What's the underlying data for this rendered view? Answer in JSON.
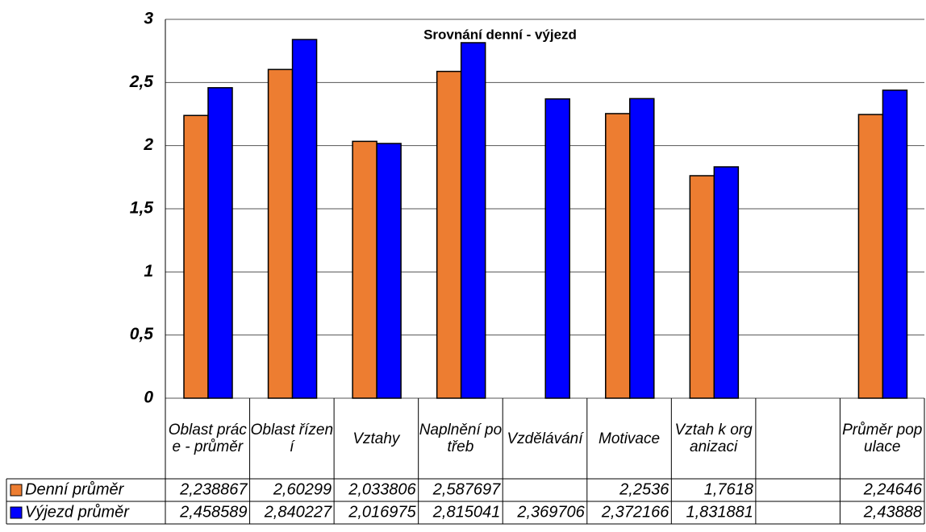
{
  "chart_data": {
    "type": "bar",
    "title": "Srovnání denní - výjezd",
    "categories": [
      "Oblast práce - průměr",
      "Oblast řízení",
      "Vztahy",
      "Naplnění potřeb",
      "Vzdělávání",
      "Motivace",
      "Vztah k organizaci",
      null,
      "Průměr populace"
    ],
    "series": [
      {
        "name": "Denní průměr",
        "color": "#ed7d31",
        "values": [
          2.238867,
          2.60299,
          2.033806,
          2.587697,
          null,
          2.2536,
          1.7618,
          null,
          2.24646
        ],
        "value_labels": [
          "2,238867",
          "2,60299",
          "2,033806",
          "2,587697",
          null,
          "2,2536",
          "1,7618",
          null,
          "2,24646"
        ]
      },
      {
        "name": "Výjezd průměr",
        "color": "#0000ff",
        "values": [
          2.458589,
          2.840227,
          2.016975,
          2.815041,
          2.369706,
          2.372166,
          1.831881,
          null,
          2.43888
        ],
        "value_labels": [
          "2,458589",
          "2,840227",
          "2,016975",
          "2,815041",
          "2,369706",
          "2,372166",
          "1,831881",
          null,
          "2,43888"
        ]
      }
    ],
    "ylim": [
      0,
      3
    ],
    "yticks": [
      0,
      {
        "value": 0.5,
        "label": "0,5"
      },
      1,
      {
        "value": 1.5,
        "label": "1,5"
      },
      2,
      {
        "value": 2.5,
        "label": "2,5"
      },
      3
    ],
    "grid": true
  }
}
